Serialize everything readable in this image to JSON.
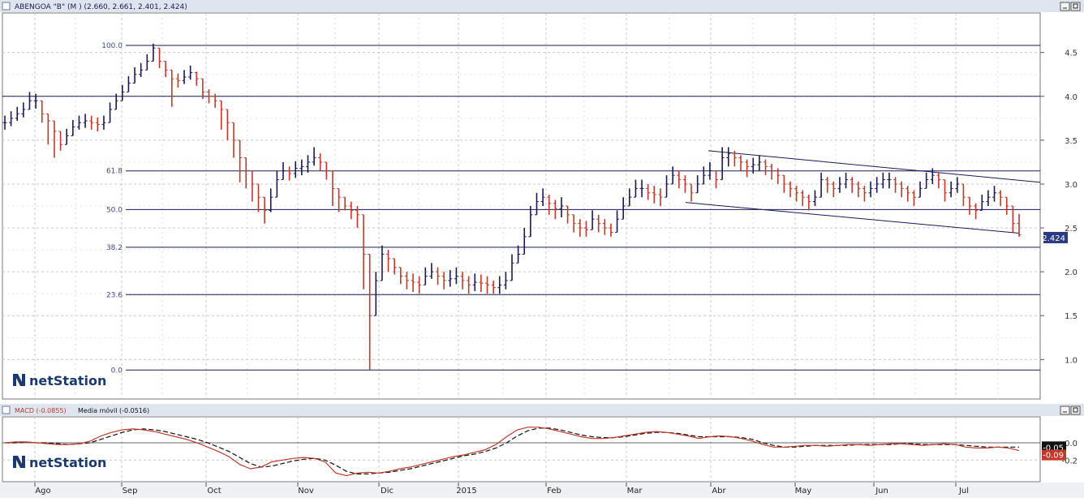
{
  "main_panel": {
    "title": "ABENGOA \"B\" (M ) (2.660, 2.661, 2.401, 2.424)",
    "price_ticks": [
      "4.5",
      "4.0",
      "3.5",
      "3.0",
      "2.5",
      "2.0",
      "1.5",
      "1.0"
    ],
    "price_tick_values": [
      4.5,
      4.0,
      3.5,
      3.0,
      2.5,
      2.0,
      1.5,
      1.0
    ],
    "last_price_label": "2.424",
    "watermark": "netStation"
  },
  "macd_panel": {
    "title_macd": "MACD (-0.0855)",
    "title_ma": "Media móvil (-0.0516)",
    "ticks": [
      "0.0",
      "-0.2"
    ],
    "tick_values": [
      0.0,
      -0.2
    ],
    "signal_label": "-0.05",
    "macd_label": "-0.09",
    "watermark": "netStation"
  },
  "x_axis": {
    "labels": [
      "Ago",
      "Sep",
      "Oct",
      "Nov",
      "Dic",
      "2015",
      "Feb",
      "Mar",
      "Abr",
      "May",
      "Jun",
      "Jul"
    ]
  },
  "fib_levels": [
    {
      "label": "100.0",
      "price": 4.58
    },
    {
      "label": "61.8",
      "price": 3.15
    },
    {
      "label": "50.0",
      "price": 2.71
    },
    {
      "label": "38.2",
      "price": 2.28
    },
    {
      "label": "23.6",
      "price": 1.74
    },
    {
      "label": "0.0",
      "price": 0.88
    }
  ],
  "horizontal_line": {
    "price": 4.0
  },
  "colors": {
    "up": "#1a1a55",
    "down": "#c0392b",
    "line": "#1a1a55",
    "macd": "#c0392b",
    "signal": "#111111",
    "grid": "#c8c8c8",
    "header": "#dfe5ef",
    "price_box": "#2a3a80",
    "macd_box": "#c0392b"
  },
  "chart_data": [
    {
      "type": "ohlc",
      "title": "ABENGOA \"B\" (M ) (2.660, 2.661, 2.401, 2.424)",
      "x_labels": [
        "Ago",
        "Sep",
        "Oct",
        "Nov",
        "Dic",
        "2015",
        "Feb",
        "Mar",
        "Abr",
        "May",
        "Jun",
        "Jul"
      ],
      "ylim": [
        0.55,
        4.95
      ],
      "closes": [
        3.7,
        3.75,
        3.8,
        3.85,
        3.95,
        3.95,
        3.8,
        3.72,
        3.6,
        3.45,
        3.55,
        3.65,
        3.7,
        3.72,
        3.7,
        3.68,
        3.7,
        3.85,
        3.95,
        4.05,
        4.15,
        4.25,
        4.3,
        4.4,
        4.55,
        4.4,
        4.3,
        4.2,
        4.18,
        4.22,
        4.27,
        4.2,
        4.05,
        4.0,
        3.95,
        3.85,
        3.7,
        3.5,
        3.3,
        3.15,
        3.0,
        2.85,
        2.7,
        2.85,
        3.05,
        3.15,
        3.12,
        3.18,
        3.2,
        3.25,
        3.3,
        3.25,
        3.15,
        2.95,
        2.85,
        2.75,
        2.7,
        2.65,
        2.2,
        1.5,
        1.9,
        2.2,
        2.15,
        2.05,
        1.95,
        1.9,
        1.88,
        1.85,
        1.95,
        2.0,
        1.95,
        1.9,
        1.92,
        1.95,
        1.9,
        1.85,
        1.88,
        1.87,
        1.85,
        1.82,
        1.85,
        1.9,
        2.1,
        2.2,
        2.4,
        2.65,
        2.8,
        2.85,
        2.78,
        2.72,
        2.75,
        2.65,
        2.55,
        2.5,
        2.48,
        2.6,
        2.55,
        2.5,
        2.45,
        2.6,
        2.75,
        2.85,
        2.95,
        2.95,
        2.9,
        2.88,
        2.85,
        3.0,
        3.1,
        3.05,
        3.0,
        2.9,
        3.0,
        3.1,
        3.15,
        3.05,
        3.3,
        3.35,
        3.3,
        3.25,
        3.2,
        3.22,
        3.25,
        3.2,
        3.15,
        3.1,
        3.0,
        2.95,
        2.9,
        2.85,
        2.8,
        2.85,
        3.05,
        3.0,
        2.95,
        3.0,
        3.05,
        3.0,
        2.95,
        2.9,
        2.95,
        3.0,
        3.05,
        3.05,
        3.0,
        2.95,
        2.9,
        2.85,
        2.95,
        3.05,
        3.1,
        3.05,
        2.9,
        2.95,
        3.0,
        2.85,
        2.75,
        2.7,
        2.8,
        2.85,
        2.9,
        2.85,
        2.75,
        2.55,
        2.42
      ],
      "lows": [
        3.62,
        3.66,
        3.72,
        3.76,
        3.86,
        3.86,
        3.7,
        3.45,
        3.3,
        3.38,
        3.47,
        3.57,
        3.62,
        3.64,
        3.62,
        3.6,
        3.62,
        3.78,
        3.87,
        3.97,
        4.07,
        4.17,
        4.22,
        4.32,
        4.47,
        4.32,
        4.22,
        3.88,
        4.1,
        4.14,
        4.19,
        4.12,
        3.97,
        3.92,
        3.87,
        3.62,
        3.5,
        3.3,
        3.02,
        2.95,
        2.8,
        2.68,
        2.55,
        2.68,
        2.95,
        3.05,
        3.04,
        3.07,
        3.1,
        3.13,
        3.21,
        3.15,
        3.05,
        2.75,
        2.68,
        2.7,
        2.6,
        2.5,
        1.8,
        0.88,
        1.55,
        1.95,
        2.0,
        1.97,
        1.86,
        1.8,
        1.77,
        1.75,
        1.85,
        1.92,
        1.85,
        1.8,
        1.83,
        1.86,
        1.8,
        1.75,
        1.78,
        1.77,
        1.75,
        1.75,
        1.75,
        1.8,
        2.0,
        2.1,
        2.3,
        2.55,
        2.65,
        2.75,
        2.65,
        2.6,
        2.62,
        2.55,
        2.45,
        2.4,
        2.4,
        2.48,
        2.45,
        2.42,
        2.4,
        2.5,
        2.65,
        2.75,
        2.85,
        2.85,
        2.82,
        2.78,
        2.75,
        2.9,
        3.0,
        2.95,
        2.9,
        2.8,
        2.92,
        3.0,
        3.05,
        2.95,
        3.1,
        3.2,
        3.2,
        3.15,
        3.08,
        3.12,
        3.15,
        3.1,
        3.05,
        3.0,
        2.9,
        2.85,
        2.8,
        2.75,
        2.7,
        2.75,
        2.9,
        2.9,
        2.85,
        2.9,
        2.95,
        2.9,
        2.85,
        2.8,
        2.85,
        2.9,
        2.95,
        2.95,
        2.9,
        2.85,
        2.8,
        2.75,
        2.85,
        2.95,
        3.0,
        2.95,
        2.8,
        2.85,
        2.9,
        2.75,
        2.65,
        2.6,
        2.7,
        2.75,
        2.8,
        2.75,
        2.65,
        2.45,
        2.4
      ],
      "highs": [
        3.78,
        3.83,
        3.88,
        3.93,
        4.05,
        4.03,
        3.9,
        3.8,
        3.68,
        3.55,
        3.63,
        3.73,
        3.78,
        3.8,
        3.78,
        3.76,
        3.78,
        3.93,
        4.03,
        4.13,
        4.23,
        4.33,
        4.38,
        4.48,
        4.6,
        4.5,
        4.38,
        4.28,
        4.26,
        4.3,
        4.35,
        4.28,
        4.13,
        4.08,
        4.03,
        3.93,
        3.8,
        3.6,
        3.4,
        3.25,
        3.1,
        2.95,
        2.8,
        2.95,
        3.15,
        3.25,
        3.2,
        3.26,
        3.28,
        3.33,
        3.42,
        3.35,
        3.25,
        3.05,
        2.95,
        2.85,
        2.8,
        2.75,
        2.35,
        1.65,
        2.0,
        2.3,
        2.25,
        2.15,
        2.05,
        2.0,
        1.98,
        1.95,
        2.05,
        2.1,
        2.05,
        2.0,
        2.02,
        2.05,
        2.0,
        1.95,
        1.98,
        1.97,
        1.95,
        1.9,
        1.95,
        2.0,
        2.2,
        2.3,
        2.5,
        2.75,
        2.9,
        2.95,
        2.88,
        2.82,
        2.85,
        2.75,
        2.65,
        2.6,
        2.58,
        2.7,
        2.65,
        2.6,
        2.55,
        2.7,
        2.85,
        2.95,
        3.05,
        3.05,
        3.0,
        2.98,
        2.95,
        3.1,
        3.2,
        3.15,
        3.1,
        3.0,
        3.1,
        3.2,
        3.25,
        3.15,
        3.42,
        3.42,
        3.38,
        3.33,
        3.28,
        3.3,
        3.33,
        3.28,
        3.23,
        3.18,
        3.08,
        3.03,
        2.98,
        2.93,
        2.88,
        2.93,
        3.13,
        3.08,
        3.03,
        3.08,
        3.13,
        3.08,
        3.03,
        2.98,
        3.03,
        3.08,
        3.13,
        3.13,
        3.08,
        3.03,
        2.98,
        2.93,
        3.03,
        3.13,
        3.18,
        3.13,
        2.98,
        3.03,
        3.08,
        2.93,
        2.83,
        2.78,
        2.88,
        2.93,
        2.98,
        2.93,
        2.83,
        2.66,
        2.66
      ]
    },
    {
      "type": "line",
      "title": "MACD (-0.0855)",
      "series": [
        {
          "name": "MACD (-0.0855)",
          "values": [
            0.0,
            0.01,
            0.01,
            0.0,
            -0.01,
            -0.02,
            -0.02,
            -0.01,
            0.02,
            0.08,
            0.12,
            0.15,
            0.16,
            0.15,
            0.13,
            0.1,
            0.07,
            0.04,
            0.0,
            -0.05,
            -0.1,
            -0.16,
            -0.25,
            -0.3,
            -0.28,
            -0.22,
            -0.2,
            -0.18,
            -0.17,
            -0.18,
            -0.22,
            -0.35,
            -0.38,
            -0.35,
            -0.34,
            -0.35,
            -0.33,
            -0.3,
            -0.28,
            -0.25,
            -0.22,
            -0.19,
            -0.16,
            -0.14,
            -0.11,
            -0.08,
            -0.02,
            0.07,
            0.15,
            0.18,
            0.18,
            0.16,
            0.13,
            0.1,
            0.07,
            0.05,
            0.05,
            0.06,
            0.08,
            0.1,
            0.12,
            0.13,
            0.12,
            0.1,
            0.08,
            0.05,
            0.07,
            0.08,
            0.07,
            0.05,
            0.02,
            -0.02,
            -0.05,
            -0.05,
            -0.04,
            -0.03,
            -0.03,
            -0.04,
            -0.03,
            -0.02,
            -0.02,
            -0.03,
            -0.02,
            -0.01,
            -0.01,
            -0.02,
            -0.03,
            -0.02,
            -0.01,
            -0.02,
            -0.05,
            -0.06,
            -0.06,
            -0.05,
            -0.06,
            -0.09
          ]
        },
        {
          "name": "Media móvil (-0.0516)",
          "values": [
            0.0,
            0.0,
            0.01,
            0.0,
            0.0,
            -0.01,
            -0.02,
            -0.01,
            0.0,
            0.04,
            0.08,
            0.12,
            0.15,
            0.16,
            0.15,
            0.13,
            0.1,
            0.07,
            0.04,
            0.0,
            -0.05,
            -0.1,
            -0.17,
            -0.24,
            -0.28,
            -0.27,
            -0.24,
            -0.21,
            -0.19,
            -0.18,
            -0.2,
            -0.26,
            -0.33,
            -0.36,
            -0.36,
            -0.35,
            -0.34,
            -0.32,
            -0.3,
            -0.27,
            -0.24,
            -0.21,
            -0.18,
            -0.15,
            -0.13,
            -0.1,
            -0.06,
            0.0,
            0.08,
            0.14,
            0.17,
            0.17,
            0.15,
            0.12,
            0.09,
            0.07,
            0.06,
            0.06,
            0.07,
            0.09,
            0.11,
            0.12,
            0.12,
            0.11,
            0.09,
            0.07,
            0.07,
            0.07,
            0.07,
            0.06,
            0.04,
            0.0,
            -0.03,
            -0.05,
            -0.05,
            -0.04,
            -0.03,
            -0.03,
            -0.03,
            -0.03,
            -0.02,
            -0.02,
            -0.02,
            -0.02,
            -0.01,
            -0.01,
            -0.02,
            -0.02,
            -0.02,
            -0.02,
            -0.03,
            -0.04,
            -0.05,
            -0.05,
            -0.05,
            -0.05
          ]
        }
      ],
      "ylim": [
        -0.45,
        0.3
      ],
      "x_labels": [
        "Ago",
        "Sep",
        "Oct",
        "Nov",
        "Dic",
        "2015",
        "Feb",
        "Mar",
        "Abr",
        "May",
        "Jun",
        "Jul"
      ]
    }
  ]
}
